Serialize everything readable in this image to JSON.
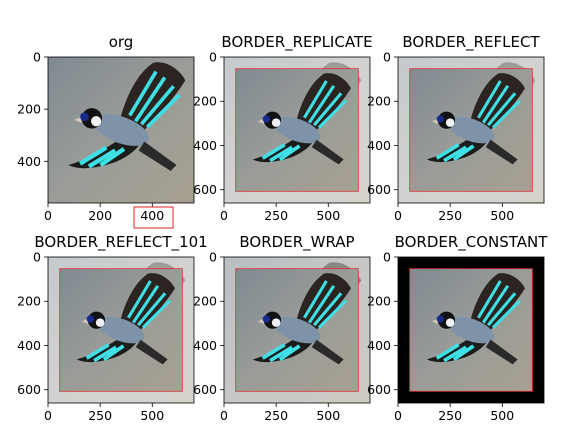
{
  "chart_data": [
    {
      "type": "image",
      "title": "org",
      "xlim": [
        0,
        560
      ],
      "ylim": [
        560,
        0
      ],
      "xticks": [
        0,
        200,
        400
      ],
      "yticks": [
        0,
        200,
        400
      ]
    },
    {
      "type": "image",
      "title": "BORDER_REPLICATE",
      "xlim": [
        0,
        700
      ],
      "ylim": [
        660,
        0
      ],
      "xticks": [
        0,
        250,
        500
      ],
      "yticks": [
        0,
        200,
        400,
        600
      ]
    },
    {
      "type": "image",
      "title": "BORDER_REFLECT",
      "xlim": [
        0,
        700
      ],
      "ylim": [
        660,
        0
      ],
      "xticks": [
        0,
        250,
        500
      ],
      "yticks": [
        0,
        200,
        400,
        600
      ]
    },
    {
      "type": "image",
      "title": "BORDER_REFLECT_101",
      "xlim": [
        0,
        700
      ],
      "ylim": [
        660,
        0
      ],
      "xticks": [
        0,
        250,
        500
      ],
      "yticks": [
        0,
        200,
        400,
        600
      ]
    },
    {
      "type": "image",
      "title": "BORDER_WRAP",
      "xlim": [
        0,
        700
      ],
      "ylim": [
        660,
        0
      ],
      "xticks": [
        0,
        250,
        500
      ],
      "yticks": [
        0,
        200,
        400,
        600
      ]
    },
    {
      "type": "image",
      "title": "BORDER_CONSTANT",
      "xlim": [
        0,
        700
      ],
      "ylim": [
        660,
        0
      ],
      "xticks": [
        0,
        250,
        500
      ],
      "yticks": [
        0,
        200,
        400,
        600
      ]
    }
  ]
}
